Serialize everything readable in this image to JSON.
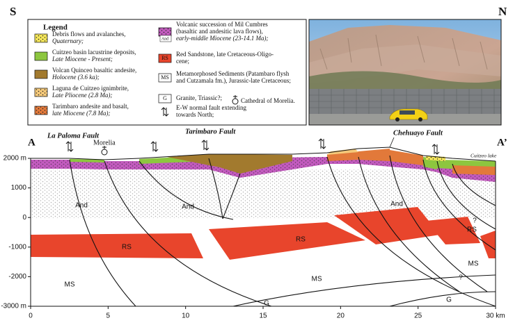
{
  "header": {
    "left": "S",
    "right": "N"
  },
  "legend": {
    "title": "Legend",
    "items": [
      {
        "lines": [
          "Debris flows and avalanches,",
          "Quaternary;"
        ]
      },
      {
        "lines": [
          "Cuitzeo basin lacustrine deposits,",
          "Late Miocene - Present;"
        ]
      },
      {
        "lines": [
          "Volcan Quinceo basaltic andesite,",
          "Holocene (3.6 ka);"
        ]
      },
      {
        "lines": [
          "Laguna de Cuitzeo ignimbrite,",
          "Late Pliocene (2.8 Ma);"
        ]
      },
      {
        "lines": [
          "Tarimbaro andesite and basalt,",
          "late Miocene (7.8 Ma);"
        ]
      },
      {
        "symbol": "And",
        "lines": [
          "Volcanic succession of Mil Cumbres",
          "(basaltic and andesitic lava flows),",
          "early-middle Miocene (23-14.1 Ma);"
        ]
      },
      {
        "symbol": "RS",
        "lines": [
          "Red Sandstone, late Cretaceous-Oligo-",
          "cene;"
        ]
      },
      {
        "symbol": "MS",
        "lines": [
          "Metamorphosed Sediments (Patambaro flysh",
          "and Cutzamala fm.), Jurassic-late Cretaceous;"
        ]
      },
      {
        "symbol": "G",
        "lines": [
          "Granite, Triassic?;"
        ]
      },
      {
        "lines": [
          "E-W normal fault extending",
          "towards North;"
        ]
      }
    ],
    "cathedral": "Cathedral of Morelia."
  },
  "section": {
    "start": "A",
    "end": "A’",
    "faults": [
      "La Paloma Fault",
      "Tarimbaro Fault",
      "Chehuayo Fault"
    ],
    "town": "Morelia",
    "lake": "Cuitzeo lake",
    "units": [
      "And",
      "And",
      "And",
      "RS",
      "RS",
      "RS",
      "MS",
      "MS",
      "MS",
      "G",
      "G",
      "?",
      "?"
    ]
  },
  "axes": {
    "y": [
      "2000 m",
      "1000",
      "0",
      "-1000",
      "-2000",
      "-3000 m"
    ],
    "x": [
      "0",
      "5",
      "10",
      "15",
      "20",
      "25",
      "30 km"
    ]
  }
}
